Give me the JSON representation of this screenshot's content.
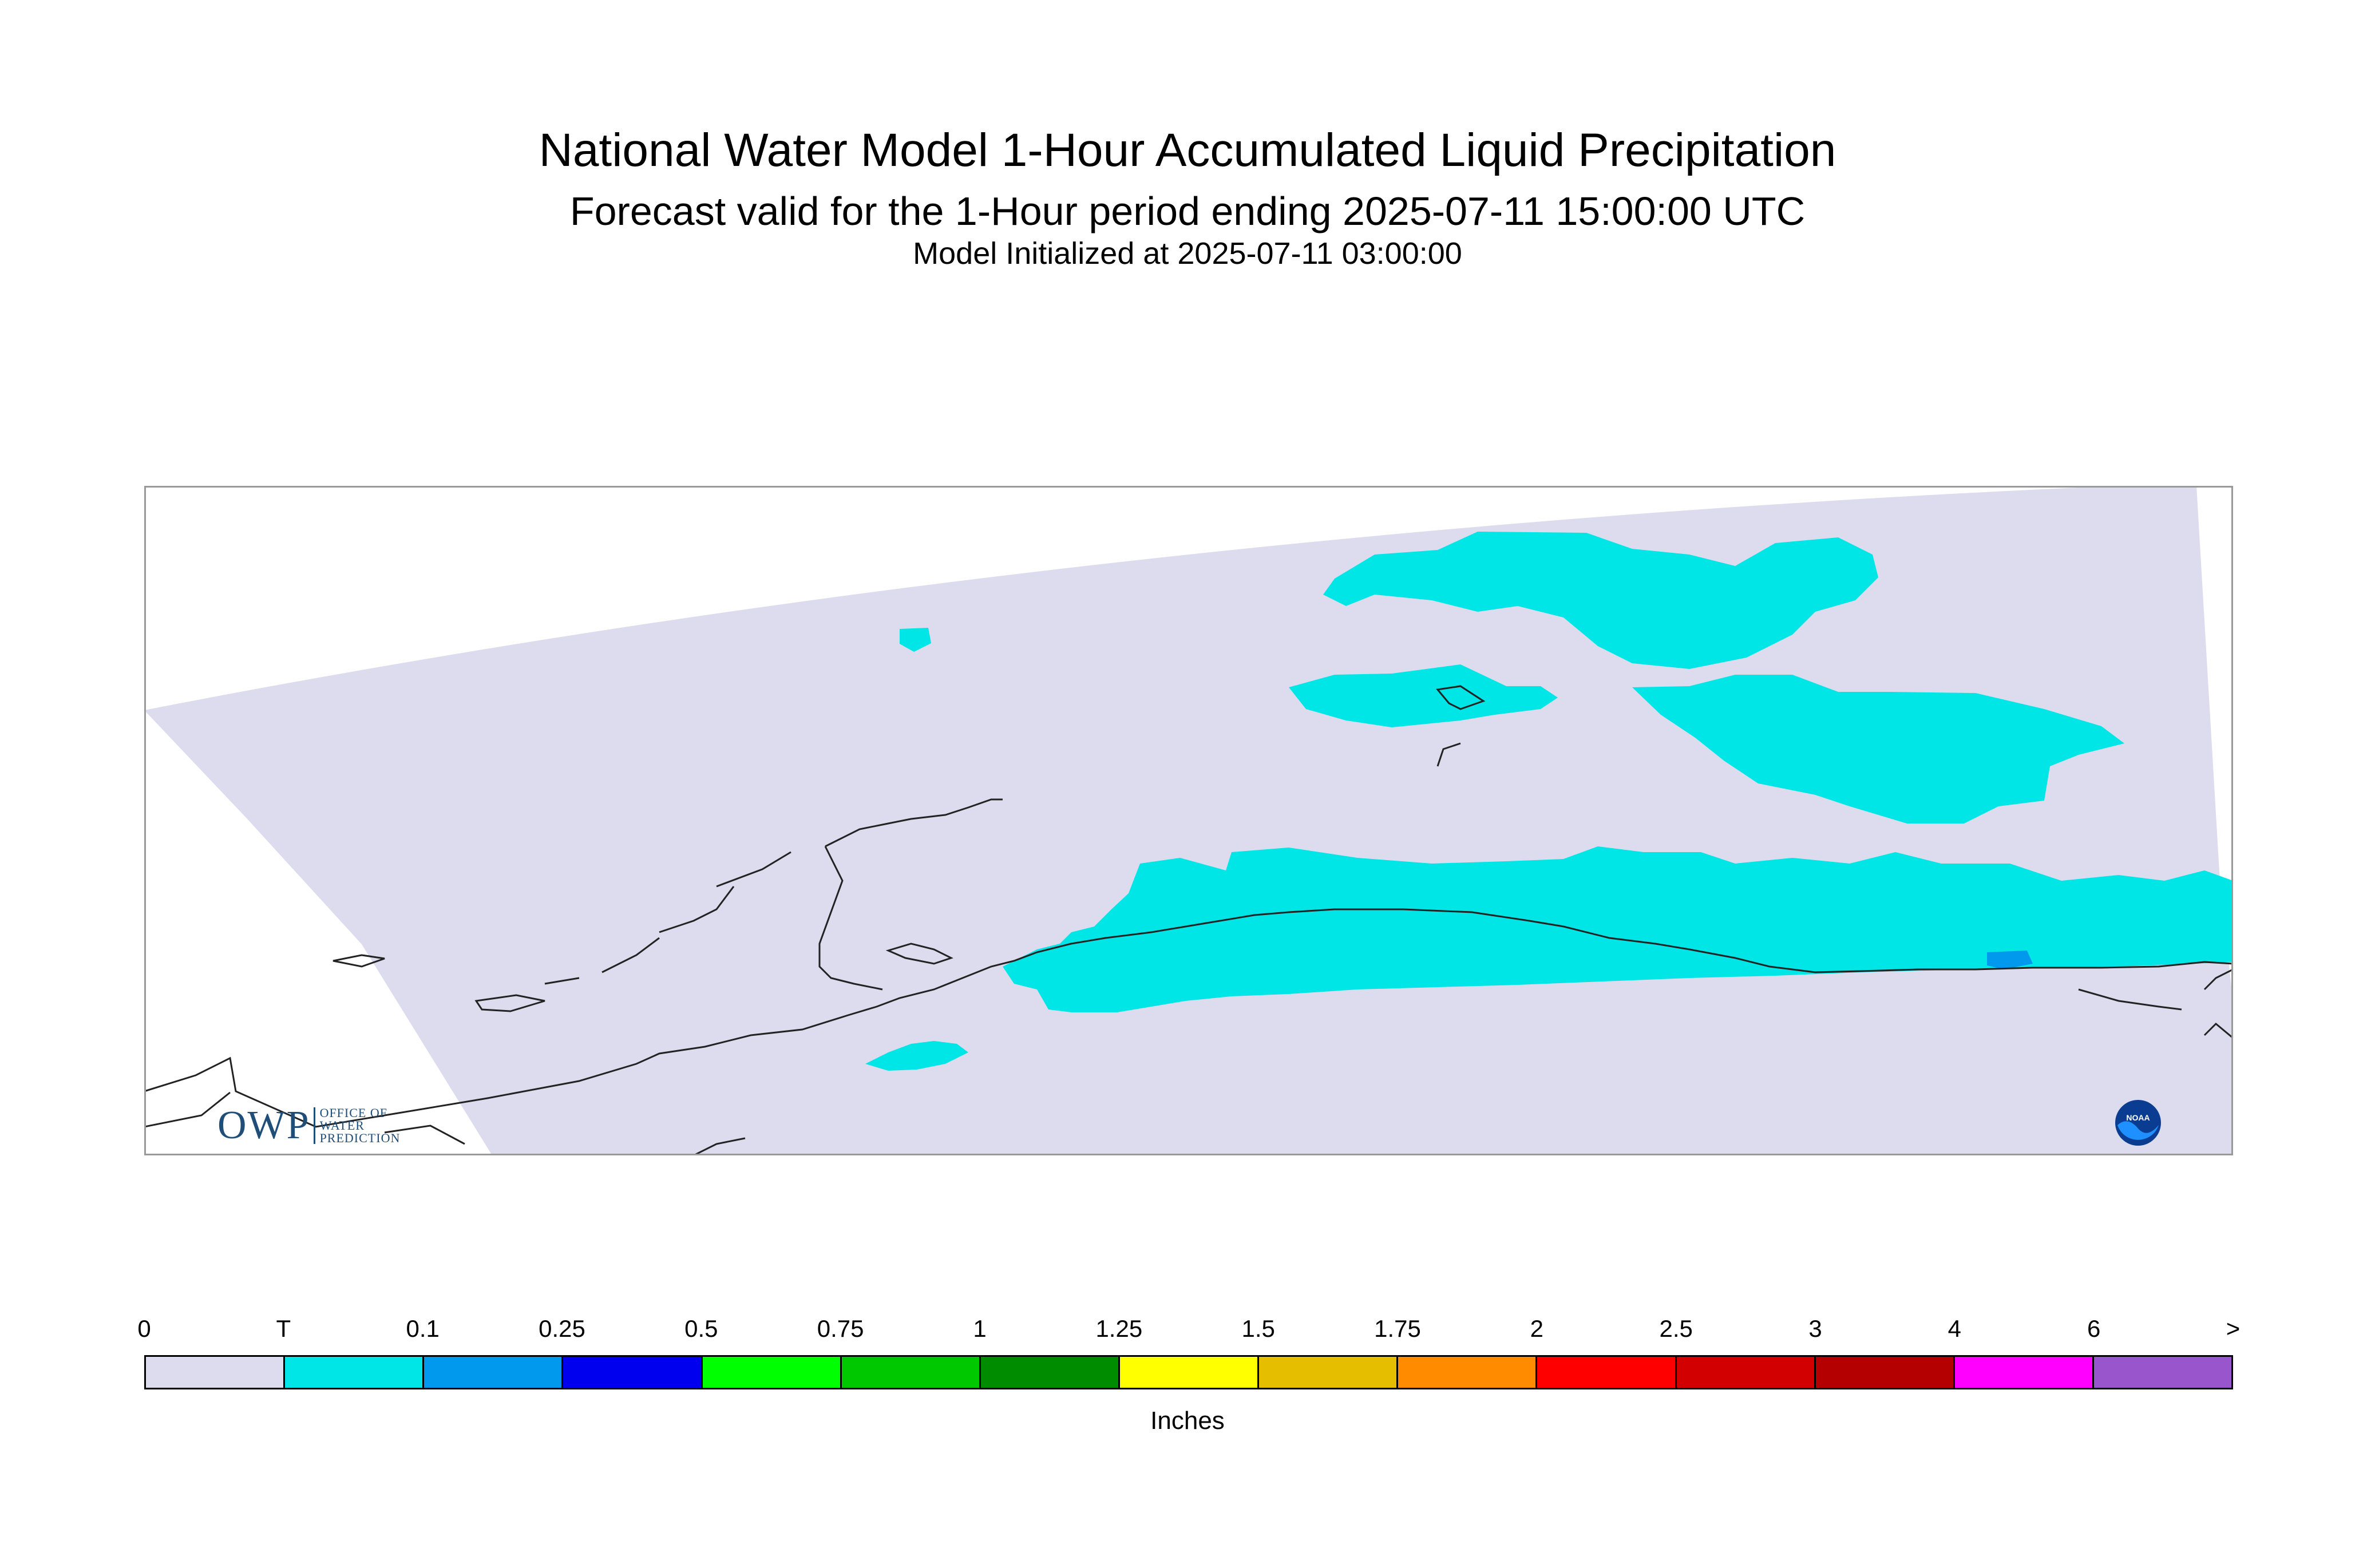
{
  "title": {
    "line1": "National Water Model 1-Hour Accumulated Liquid Precipitation",
    "line2": "Forecast valid for the 1-Hour period ending 2025-07-11 15:00:00 UTC",
    "line3": "Model Initialized at 2025-07-11 03:00:00"
  },
  "logos": {
    "owp_abbrev": "OWP",
    "owp_line1": "OFFICE OF",
    "owp_line2": "WATER",
    "owp_line3": "PREDICTION",
    "noaa_text": "NOAA"
  },
  "legend": {
    "units": "Inches",
    "labels": [
      "0",
      "T",
      "0.1",
      "0.25",
      "0.5",
      "0.75",
      "1",
      "1.25",
      "1.5",
      "1.75",
      "2",
      "2.5",
      "3",
      "4",
      "6",
      ">"
    ],
    "colors": [
      "#dcdcee",
      "#00e5e5",
      "#0099ee",
      "#0000ee",
      "#00ff00",
      "#00c800",
      "#008c00",
      "#ffff00",
      "#e6be00",
      "#ff8c00",
      "#ff0000",
      "#d20000",
      "#b40000",
      "#ff00ff",
      "#9955cc"
    ]
  },
  "map": {
    "domain_fill": "#dcdcee",
    "trace_fill": "#00e5e5",
    "light_fill": "#0099ee",
    "coast_color": "#222222",
    "frame_color": "#999999"
  }
}
